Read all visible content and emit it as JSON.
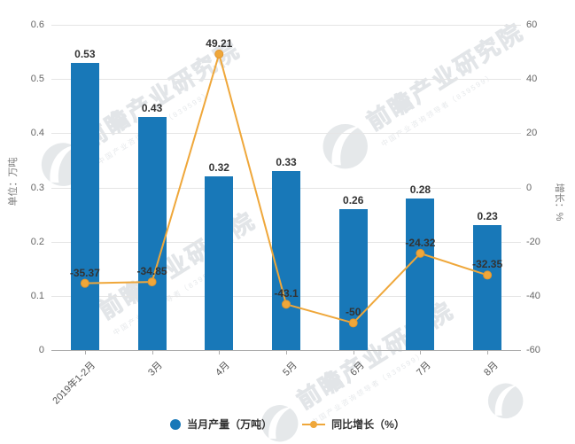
{
  "chart_data": {
    "type": "bar",
    "combo": "bar+line",
    "title": "",
    "categories": [
      "2019年1-2月",
      "3月",
      "4月",
      "5月",
      "6月",
      "7月",
      "8月"
    ],
    "series": [
      {
        "name": "当月产量（万吨）",
        "type": "bar",
        "axis": "left",
        "color": "#1878b8",
        "values": [
          0.53,
          0.43,
          0.32,
          0.33,
          0.26,
          0.28,
          0.23
        ]
      },
      {
        "name": "同比增长（%）",
        "type": "line",
        "axis": "right",
        "color": "#efa73a",
        "values": [
          -35.37,
          -34.85,
          49.21,
          -43.1,
          -50,
          -24.32,
          -32.35
        ]
      }
    ],
    "left_axis": {
      "label": "单位：万吨",
      "min": 0,
      "max": 0.6,
      "ticks": [
        "0.6",
        "0.5",
        "0.4",
        "0.3",
        "0.2",
        "0.1",
        "0"
      ]
    },
    "right_axis": {
      "label": "增长：%",
      "min": -60,
      "max": 60,
      "ticks": [
        "60",
        "40",
        "20",
        "0",
        "-20",
        "-40",
        "-60"
      ]
    },
    "grid": true,
    "legend_position": "bottom"
  },
  "legend": {
    "items": [
      {
        "label": "当月产量（万吨）",
        "marker": "circle",
        "color": "#1878b8"
      },
      {
        "label": "同比增长（%）",
        "marker": "line-dot",
        "color": "#efa73a"
      }
    ]
  },
  "watermark": {
    "text": "前瞻产业研究院",
    "subtext": "中国产业咨询领导者（839599）",
    "color": "#c9ced3"
  },
  "colors": {
    "bar": "#1878b8",
    "line": "#efa73a",
    "point_edge": "#e3952c",
    "grid": "#e5e5e5",
    "axis": "#adadad",
    "tick_text": "#666666",
    "data_label": "#333333"
  }
}
